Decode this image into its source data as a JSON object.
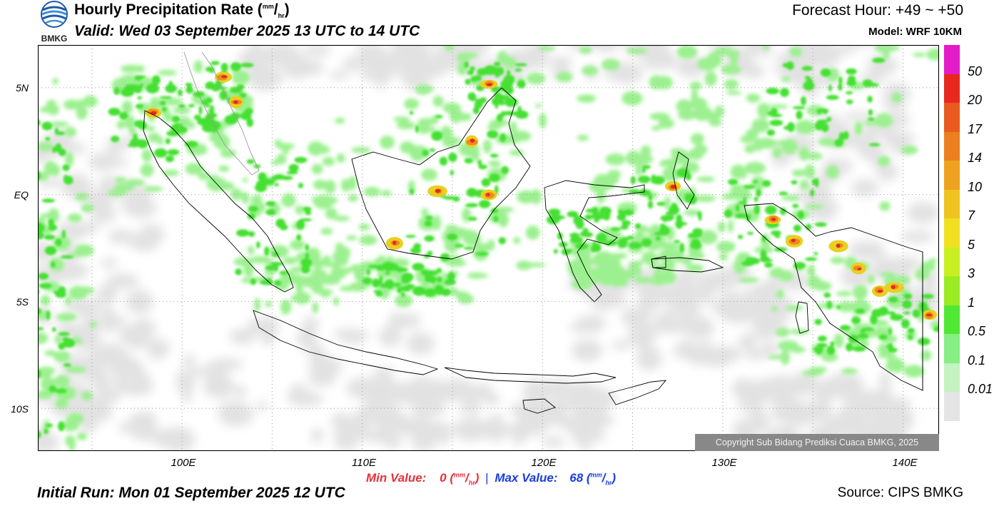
{
  "header": {
    "title": "Hourly Precipitation Rate",
    "title_unit_mm": "mm",
    "title_unit_hr": "hr",
    "valid": "Valid: Wed 03 September 2025 13 UTC to 14 UTC",
    "forecast_hour": "Forecast Hour: +49 ~ +50",
    "model": "Model: WRF 10KM",
    "logo_text": "BMKG"
  },
  "map": {
    "lat_labels": [
      "5N",
      "EQ",
      "5S",
      "10S"
    ],
    "lon_labels": [
      "100E",
      "110E",
      "120E",
      "130E",
      "140E"
    ],
    "lon_range": [
      92,
      142
    ],
    "lat_range": [
      -12,
      7
    ],
    "copyright": "Copyright Sub Bidang Prediksi Cuaca BMKG, 2025"
  },
  "legend": {
    "labels": [
      "50",
      "20",
      "17",
      "14",
      "10",
      "7",
      "5",
      "3",
      "1",
      "0.5",
      "0.1",
      "0.01"
    ],
    "colors": [
      "#e41bc8",
      "#e8281e",
      "#ea5a1e",
      "#ec7f1e",
      "#eea21f",
      "#f0c41f",
      "#f0e020",
      "#c8f020",
      "#9aeb22",
      "#4fe832",
      "#86ee84",
      "#c4f2c0",
      "#e4e4e4"
    ]
  },
  "stats": {
    "min_label": "Min Value:",
    "min_value": "0",
    "max_label": "Max Value:",
    "max_value": "68",
    "separator": "|"
  },
  "footer": {
    "initial_run": "Initial Run: Mon 01 September 2025 12 UTC",
    "source": "Source: CIPS BMKG"
  }
}
